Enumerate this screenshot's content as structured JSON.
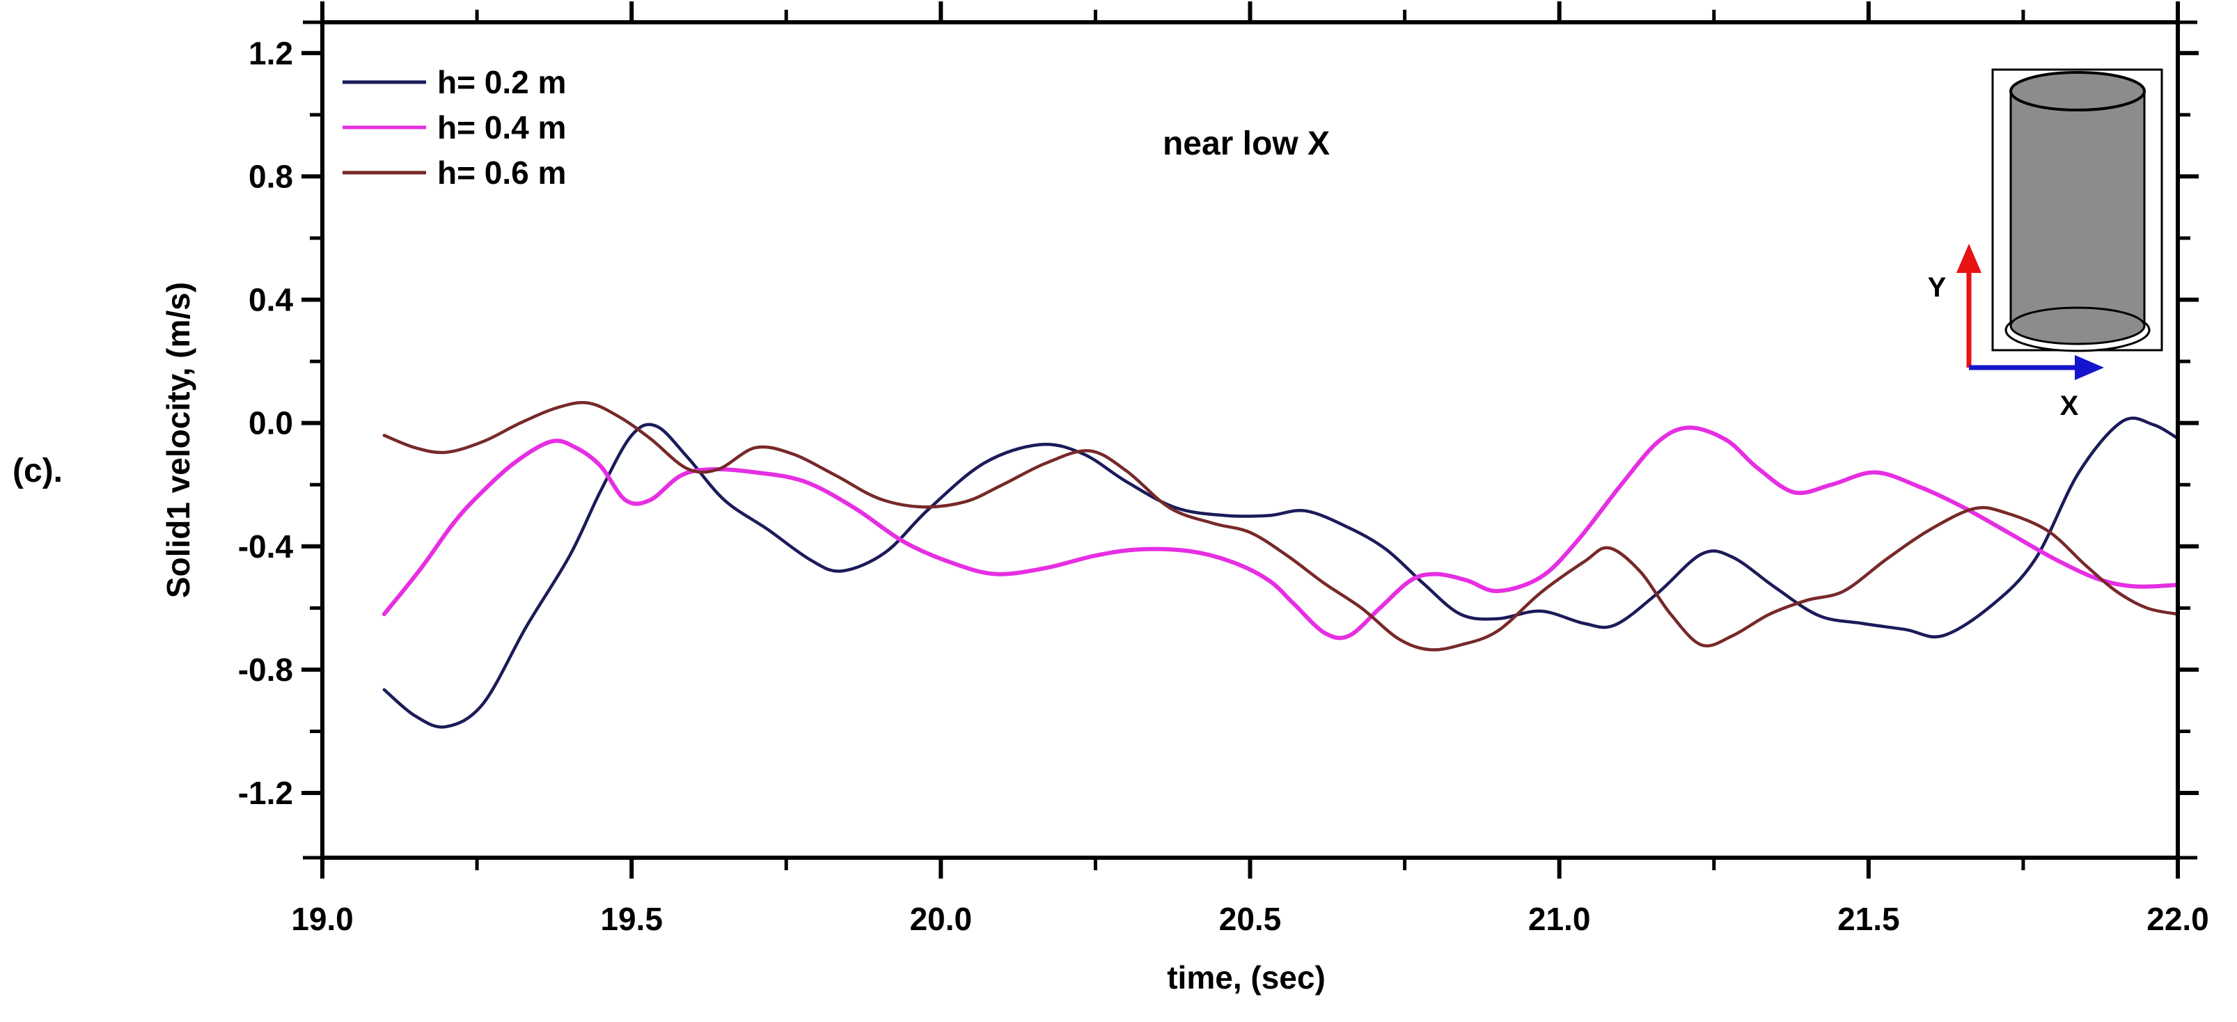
{
  "figure_label": "(c).",
  "chart_data": {
    "type": "line",
    "title": "near low X",
    "xlabel": "time, (sec)",
    "ylabel": "Solid1 velocity, (m/s)",
    "xlim": [
      19.0,
      22.0
    ],
    "ylim": [
      -1.41,
      1.3
    ],
    "x_ticks": [
      19.0,
      19.5,
      20.0,
      20.5,
      21.0,
      21.5,
      22.0
    ],
    "x_tick_labels": [
      "19.0",
      "19.5",
      "20.0",
      "20.5",
      "21.0",
      "21.5",
      "22.0"
    ],
    "x_minor_ticks": [
      19.25,
      19.75,
      20.25,
      20.75,
      21.25,
      21.75
    ],
    "y_ticks": [
      1.2,
      0.8,
      0.4,
      0.0,
      -0.4,
      -0.8,
      -1.2
    ],
    "y_tick_labels": [
      "1.2",
      "0.8",
      "0.4",
      "0.0",
      "-0.4",
      "-0.8",
      "-1.2"
    ],
    "y_minor_ticks": [
      1.0,
      0.6,
      0.2,
      -0.2,
      -0.6,
      -1.0
    ],
    "grid": false,
    "legend_position": "top-left-inside",
    "series": [
      {
        "name": "h= 0.2 m",
        "color": "#1b1b5a",
        "points": [
          [
            19.1,
            -0.865
          ],
          [
            19.15,
            -0.95
          ],
          [
            19.2,
            -0.985
          ],
          [
            19.26,
            -0.91
          ],
          [
            19.33,
            -0.66
          ],
          [
            19.4,
            -0.43
          ],
          [
            19.45,
            -0.22
          ],
          [
            19.5,
            -0.04
          ],
          [
            19.54,
            -0.01
          ],
          [
            19.59,
            -0.11
          ],
          [
            19.65,
            -0.25
          ],
          [
            19.72,
            -0.345
          ],
          [
            19.79,
            -0.445
          ],
          [
            19.84,
            -0.48
          ],
          [
            19.91,
            -0.42
          ],
          [
            19.98,
            -0.28
          ],
          [
            20.07,
            -0.13
          ],
          [
            20.16,
            -0.07
          ],
          [
            20.23,
            -0.1
          ],
          [
            20.3,
            -0.19
          ],
          [
            20.38,
            -0.275
          ],
          [
            20.46,
            -0.3
          ],
          [
            20.53,
            -0.3
          ],
          [
            20.59,
            -0.285
          ],
          [
            20.66,
            -0.34
          ],
          [
            20.72,
            -0.41
          ],
          [
            20.78,
            -0.52
          ],
          [
            20.84,
            -0.62
          ],
          [
            20.9,
            -0.635
          ],
          [
            20.97,
            -0.61
          ],
          [
            21.04,
            -0.65
          ],
          [
            21.09,
            -0.655
          ],
          [
            21.16,
            -0.55
          ],
          [
            21.23,
            -0.425
          ],
          [
            21.28,
            -0.435
          ],
          [
            21.35,
            -0.535
          ],
          [
            21.42,
            -0.625
          ],
          [
            21.49,
            -0.65
          ],
          [
            21.56,
            -0.67
          ],
          [
            21.62,
            -0.69
          ],
          [
            21.7,
            -0.59
          ],
          [
            21.77,
            -0.44
          ],
          [
            21.84,
            -0.16
          ],
          [
            21.91,
            0.005
          ],
          [
            21.96,
            -0.005
          ],
          [
            22.0,
            -0.05
          ]
        ]
      },
      {
        "name": "h= 0.4 m",
        "color": "#e62ee2",
        "points": [
          [
            19.1,
            -0.62
          ],
          [
            19.16,
            -0.47
          ],
          [
            19.21,
            -0.33
          ],
          [
            19.25,
            -0.24
          ],
          [
            19.31,
            -0.13
          ],
          [
            19.37,
            -0.06
          ],
          [
            19.41,
            -0.08
          ],
          [
            19.45,
            -0.14
          ],
          [
            19.49,
            -0.25
          ],
          [
            19.53,
            -0.25
          ],
          [
            19.58,
            -0.17
          ],
          [
            19.63,
            -0.15
          ],
          [
            19.7,
            -0.16
          ],
          [
            19.78,
            -0.19
          ],
          [
            19.86,
            -0.275
          ],
          [
            19.94,
            -0.385
          ],
          [
            20.02,
            -0.455
          ],
          [
            20.09,
            -0.49
          ],
          [
            20.17,
            -0.47
          ],
          [
            20.25,
            -0.43
          ],
          [
            20.32,
            -0.41
          ],
          [
            20.4,
            -0.415
          ],
          [
            20.47,
            -0.45
          ],
          [
            20.53,
            -0.51
          ],
          [
            20.57,
            -0.585
          ],
          [
            20.62,
            -0.68
          ],
          [
            20.66,
            -0.69
          ],
          [
            20.71,
            -0.6
          ],
          [
            20.76,
            -0.51
          ],
          [
            20.8,
            -0.49
          ],
          [
            20.85,
            -0.51
          ],
          [
            20.9,
            -0.545
          ],
          [
            20.97,
            -0.5
          ],
          [
            21.03,
            -0.38
          ],
          [
            21.1,
            -0.2
          ],
          [
            21.16,
            -0.06
          ],
          [
            21.21,
            -0.015
          ],
          [
            21.27,
            -0.055
          ],
          [
            21.32,
            -0.145
          ],
          [
            21.38,
            -0.225
          ],
          [
            21.44,
            -0.2
          ],
          [
            21.51,
            -0.16
          ],
          [
            21.58,
            -0.205
          ],
          [
            21.65,
            -0.27
          ],
          [
            21.73,
            -0.36
          ],
          [
            21.8,
            -0.44
          ],
          [
            21.87,
            -0.505
          ],
          [
            21.93,
            -0.53
          ],
          [
            22.0,
            -0.525
          ]
        ]
      },
      {
        "name": "h= 0.6 m",
        "color": "#772929",
        "points": [
          [
            19.1,
            -0.04
          ],
          [
            19.15,
            -0.08
          ],
          [
            19.2,
            -0.095
          ],
          [
            19.26,
            -0.06
          ],
          [
            19.32,
            0.0
          ],
          [
            19.38,
            0.05
          ],
          [
            19.43,
            0.065
          ],
          [
            19.48,
            0.02
          ],
          [
            19.53,
            -0.05
          ],
          [
            19.59,
            -0.148
          ],
          [
            19.64,
            -0.15
          ],
          [
            19.7,
            -0.08
          ],
          [
            19.76,
            -0.1
          ],
          [
            19.83,
            -0.17
          ],
          [
            19.9,
            -0.245
          ],
          [
            19.97,
            -0.272
          ],
          [
            20.04,
            -0.255
          ],
          [
            20.1,
            -0.2
          ],
          [
            20.17,
            -0.13
          ],
          [
            20.24,
            -0.09
          ],
          [
            20.3,
            -0.155
          ],
          [
            20.37,
            -0.275
          ],
          [
            20.44,
            -0.325
          ],
          [
            20.5,
            -0.355
          ],
          [
            20.56,
            -0.43
          ],
          [
            20.62,
            -0.52
          ],
          [
            20.68,
            -0.6
          ],
          [
            20.74,
            -0.7
          ],
          [
            20.79,
            -0.735
          ],
          [
            20.84,
            -0.72
          ],
          [
            20.9,
            -0.675
          ],
          [
            20.97,
            -0.55
          ],
          [
            21.04,
            -0.45
          ],
          [
            21.08,
            -0.405
          ],
          [
            21.13,
            -0.48
          ],
          [
            21.18,
            -0.62
          ],
          [
            21.23,
            -0.72
          ],
          [
            21.28,
            -0.69
          ],
          [
            21.34,
            -0.62
          ],
          [
            21.4,
            -0.575
          ],
          [
            21.46,
            -0.545
          ],
          [
            21.53,
            -0.44
          ],
          [
            21.6,
            -0.345
          ],
          [
            21.67,
            -0.278
          ],
          [
            21.72,
            -0.29
          ],
          [
            21.79,
            -0.35
          ],
          [
            21.85,
            -0.46
          ],
          [
            21.9,
            -0.545
          ],
          [
            21.95,
            -0.6
          ],
          [
            22.0,
            -0.62
          ]
        ]
      }
    ]
  },
  "legend": {
    "items": [
      {
        "label": "h= 0.2 m",
        "color": "#1b1b5a"
      },
      {
        "label": "h= 0.4 m",
        "color": "#e62ee2"
      },
      {
        "label": "h= 0.6 m",
        "color": "#772929"
      }
    ]
  },
  "inset": {
    "description": "cylinder-schematic",
    "x_label": "X",
    "y_label": "Y",
    "x_color": "#1414cc",
    "y_color": "#e81212",
    "cylinder_color": "#8c8c8c",
    "border_color": "#000000"
  },
  "colors": {
    "axis": "#000000",
    "background": "#ffffff"
  }
}
